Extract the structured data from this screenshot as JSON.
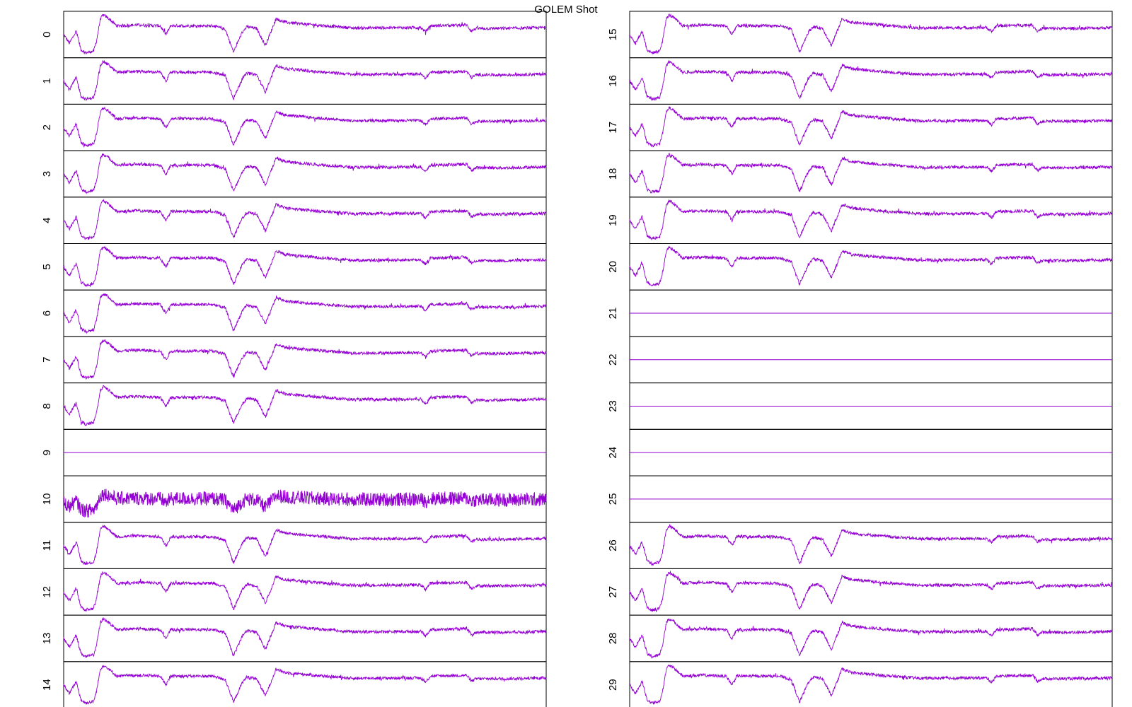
{
  "chart_data": {
    "type": "line",
    "title": "GOLEM Shot",
    "xlabel": "",
    "ylabel": "",
    "series_color": "#9400d3",
    "layout": "two columns of 15 stacked panels",
    "grid": false,
    "panels": [
      {
        "label": "0",
        "signal": "active"
      },
      {
        "label": "1",
        "signal": "active"
      },
      {
        "label": "2",
        "signal": "active"
      },
      {
        "label": "3",
        "signal": "active"
      },
      {
        "label": "4",
        "signal": "active"
      },
      {
        "label": "5",
        "signal": "active"
      },
      {
        "label": "6",
        "signal": "active"
      },
      {
        "label": "7",
        "signal": "active"
      },
      {
        "label": "8",
        "signal": "active"
      },
      {
        "label": "9",
        "signal": "flat"
      },
      {
        "label": "10",
        "signal": "noisy"
      },
      {
        "label": "11",
        "signal": "active"
      },
      {
        "label": "12",
        "signal": "active"
      },
      {
        "label": "13",
        "signal": "active"
      },
      {
        "label": "14",
        "signal": "active"
      },
      {
        "label": "15",
        "signal": "active"
      },
      {
        "label": "16",
        "signal": "active"
      },
      {
        "label": "17",
        "signal": "active"
      },
      {
        "label": "18",
        "signal": "active"
      },
      {
        "label": "19",
        "signal": "active"
      },
      {
        "label": "20",
        "signal": "active"
      },
      {
        "label": "21",
        "signal": "flat"
      },
      {
        "label": "22",
        "signal": "flat"
      },
      {
        "label": "23",
        "signal": "flat"
      },
      {
        "label": "24",
        "signal": "flat"
      },
      {
        "label": "25",
        "signal": "flat"
      },
      {
        "label": "26",
        "signal": "active"
      },
      {
        "label": "27",
        "signal": "active"
      },
      {
        "label": "28",
        "signal": "active"
      },
      {
        "label": "29",
        "signal": "active"
      }
    ]
  }
}
